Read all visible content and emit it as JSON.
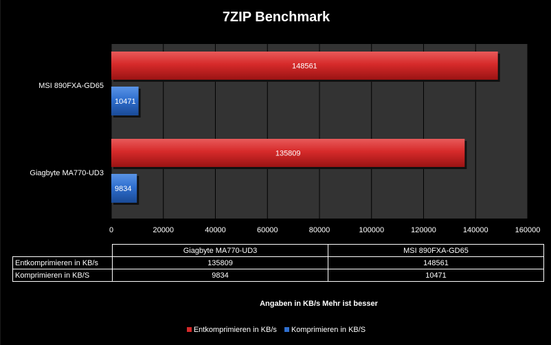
{
  "chart_data": {
    "type": "bar",
    "orientation": "horizontal",
    "title": "7ZIP Benchmark",
    "categories": [
      "MSI 890FXA-GD65",
      "Giagbyte  MA770-UD3"
    ],
    "series": [
      {
        "name": "Entkomprimieren in KB/s",
        "values": [
          148561,
          135809
        ],
        "color": "#d62a2a"
      },
      {
        "name": "Komprimieren in KB/S",
        "values": [
          10471,
          9834
        ],
        "color": "#2f6fcf"
      }
    ],
    "xlim": [
      0,
      160000
    ],
    "xticks": [
      "0",
      "20000",
      "40000",
      "60000",
      "80000",
      "100000",
      "120000",
      "140000",
      "160000"
    ],
    "grid": true,
    "legend_position": "bottom",
    "plot_background": "#333333",
    "table": {
      "columns": [
        "Giagbyte  MA770-UD3",
        "MSI 890FXA-GD65"
      ],
      "rows": [
        {
          "label": "Entkomprimieren in KB/s",
          "values": [
            "135809",
            "148561"
          ]
        },
        {
          "label": "Komprimieren in KB/S",
          "values": [
            "9834",
            "10471"
          ]
        }
      ]
    },
    "note": "Angaben in KB/s Mehr ist besser"
  }
}
